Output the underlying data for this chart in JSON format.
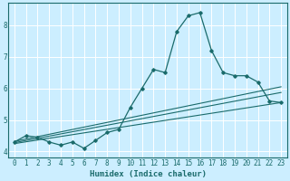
{
  "xlabel": "Humidex (Indice chaleur)",
  "background_color": "#cceeff",
  "grid_color": "#ffffff",
  "line_color": "#1a6b6b",
  "xlim": [
    -0.5,
    23.5
  ],
  "ylim": [
    3.8,
    8.7
  ],
  "xticks": [
    0,
    1,
    2,
    3,
    4,
    5,
    6,
    7,
    8,
    9,
    10,
    11,
    12,
    13,
    14,
    15,
    16,
    17,
    18,
    19,
    20,
    21,
    22,
    23
  ],
  "yticks": [
    4,
    5,
    6,
    7,
    8
  ],
  "main_line_x": [
    0,
    1,
    2,
    3,
    4,
    5,
    6,
    7,
    8,
    9,
    10,
    11,
    12,
    13,
    14,
    15,
    16,
    17,
    18,
    19,
    20,
    21,
    22,
    23
  ],
  "main_line_y": [
    4.3,
    4.5,
    4.45,
    4.3,
    4.2,
    4.3,
    4.1,
    4.35,
    4.6,
    4.7,
    5.4,
    6.0,
    6.6,
    6.5,
    7.8,
    8.3,
    8.4,
    7.2,
    6.5,
    6.4,
    6.4,
    6.2,
    5.6,
    5.55
  ],
  "line2_x": [
    0,
    23
  ],
  "line2_y": [
    4.28,
    5.87
  ],
  "line3_x": [
    0,
    23
  ],
  "line3_y": [
    4.32,
    6.05
  ],
  "line4_x": [
    0,
    23
  ],
  "line4_y": [
    4.25,
    5.55
  ]
}
